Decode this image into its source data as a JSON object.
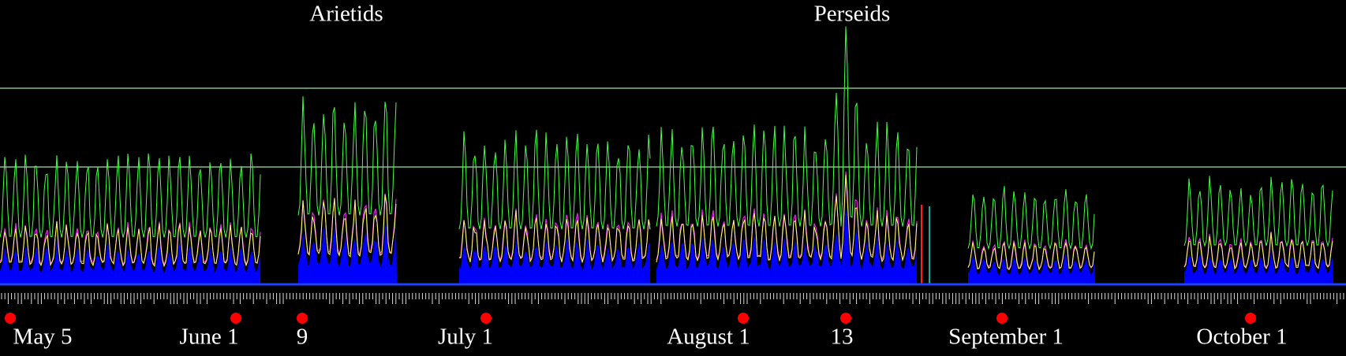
{
  "chart_data": {
    "type": "line",
    "annotations": [
      "Arietids",
      "Perseids"
    ],
    "date_labels": [
      "May 5",
      "June 1",
      "9",
      "July 1",
      "August 1",
      "13",
      "September 1",
      "October 1"
    ]
  }
}
